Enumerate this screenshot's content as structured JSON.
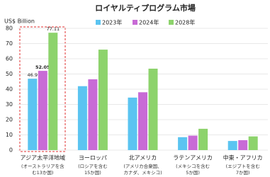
{
  "chart_data": {
    "type": "bar",
    "title": "ロイヤルティプログラム市場",
    "y_label": "US$ Billion",
    "categories": [
      "アジア太平洋地域",
      "ヨーロッパ",
      "北アメリカ",
      "ラテンアメリカ",
      "中東・アフリカ"
    ],
    "category_notes": [
      [
        "(オーストラリアを含",
        "む13か国)"
      ],
      [
        "(ロシアを含む",
        "15か国)"
      ],
      [
        "(アメリカ合衆国、",
        "カナダ、メキシコ)"
      ],
      [
        "(メキシコを含む",
        "5か国)"
      ],
      [
        "(エジプトを含む",
        "7か国)"
      ]
    ],
    "series": [
      {
        "name": "2023年",
        "color": "#5bc4f1",
        "values": [
          46.9,
          42,
          34.5,
          8.5,
          6
        ],
        "value_labels": [
          "46.9",
          null,
          null,
          null,
          null
        ]
      },
      {
        "name": "2024年",
        "color": "#c86bd6",
        "values": [
          52.05,
          46.5,
          38,
          9.5,
          6.5
        ],
        "value_labels": [
          "52.05",
          null,
          null,
          null,
          null
        ]
      },
      {
        "name": "2028年",
        "color": "#8dd36c",
        "values": [
          77.11,
          66,
          53.5,
          14,
          9
        ],
        "value_labels": [
          "77.11",
          null,
          null,
          null,
          null
        ]
      }
    ],
    "ylim": [
      0,
      80
    ],
    "yticks": [
      0,
      10,
      20,
      30,
      40,
      50,
      60,
      70,
      80
    ],
    "grid": true
  }
}
